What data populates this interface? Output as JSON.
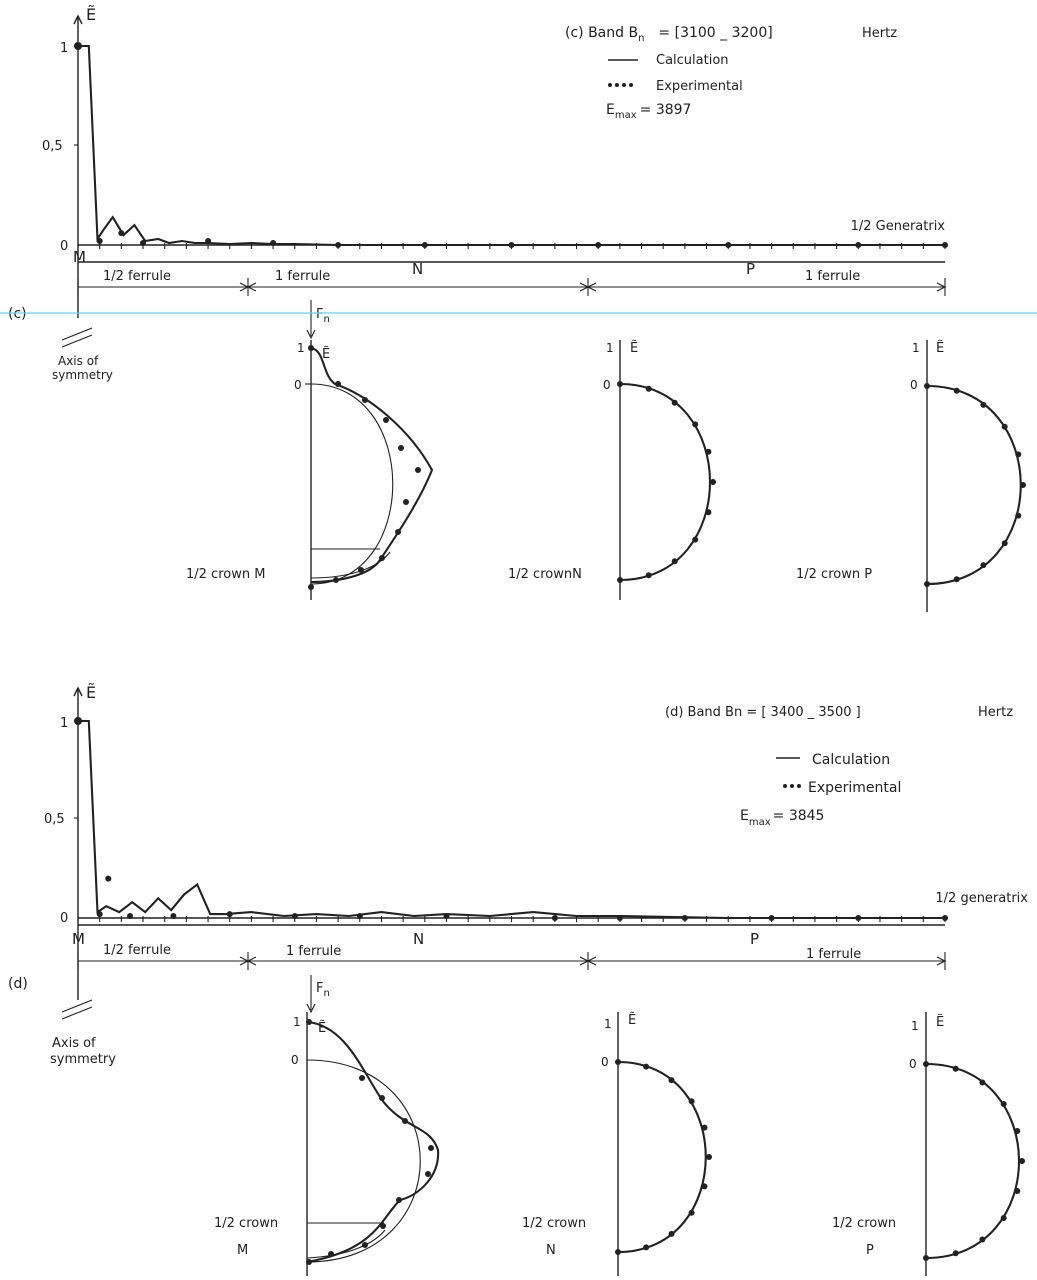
{
  "chart_data": [
    {
      "type": "line",
      "panel": "(c)",
      "title": "(c) Band B",
      "title_sub": "n",
      "band_value": "= [3100 _ 3200]",
      "band_unit": "Hertz",
      "y_label": "Ẽ",
      "ylim": [
        0,
        1
      ],
      "y_ticks": [
        "1",
        "0,5",
        "0"
      ],
      "legend": {
        "line": "Calculation",
        "dots": "Experimental"
      },
      "emax_label": "E",
      "emax_sub": "max",
      "emax_value": "= 3897",
      "x_label": "1/2 Generatrix",
      "x_points": [
        "M",
        "N",
        "P"
      ],
      "spans": [
        "1/2 ferrule",
        "1 ferrule",
        "1 ferrule"
      ],
      "symmetry_label": [
        "Axis of",
        "symmetry"
      ],
      "force_label": "F",
      "force_sub": "n",
      "series": [
        {
          "name": "Calculation",
          "x": [
            0,
            0.5,
            0.9,
            1.2,
            1.6,
            2.1,
            2.6,
            3.1,
            3.7,
            4.2,
            4.8,
            5.4,
            6,
            7,
            8,
            9,
            10,
            12,
            14,
            16,
            20,
            25,
            30,
            40
          ],
          "y": [
            1,
            1,
            0.03,
            0.08,
            0.14,
            0.05,
            0.1,
            0.02,
            0.03,
            0.01,
            0.02,
            0.01,
            0.01,
            0.005,
            0.01,
            0.005,
            0.005,
            0,
            0,
            0,
            0,
            0,
            0,
            0
          ]
        },
        {
          "name": "Experimental",
          "x": [
            0,
            1,
            2,
            3,
            6,
            9,
            12,
            16,
            20,
            24,
            30,
            36,
            40
          ],
          "y": [
            1,
            0.02,
            0.06,
            0.01,
            0.02,
            0.01,
            0,
            0,
            0,
            0,
            0,
            0,
            0
          ]
        }
      ],
      "crowns": [
        {
          "label": "1/2 crown  M",
          "y_top": "1",
          "y_zero": "0",
          "calc_y": [
            1,
            0.9,
            0.45,
            0.05,
            -0.35,
            -0.55,
            -0.6
          ],
          "exp": [
            [
              0.85,
              0.3
            ],
            [
              0.65,
              0.62
            ],
            [
              0.35,
              0.95
            ],
            [
              0.05,
              1.22
            ],
            [
              -0.2,
              1.0
            ],
            [
              -0.45,
              0.8
            ],
            [
              -0.72,
              0.55
            ],
            [
              -0.9,
              0.35
            ],
            [
              -1.0,
              0.25
            ],
            [
              -1.05,
              0.0
            ]
          ]
        },
        {
          "label": "1/2 crownN",
          "y_top": "1",
          "y_zero": "0",
          "exp_count": 11
        },
        {
          "label": "1/2 crown  P",
          "y_top": "1",
          "y_zero": "0",
          "exp_count": 11
        }
      ]
    },
    {
      "type": "line",
      "panel": "(d)",
      "title": "(d) Band  Bn = [ 3400 _ 3500 ]",
      "band_unit": "Hertz",
      "y_label": "Ẽ",
      "ylim": [
        0,
        1
      ],
      "y_ticks": [
        "1",
        "0,5",
        "0"
      ],
      "legend": {
        "line": "Calculation",
        "dots": "Experimental"
      },
      "emax_label": "E",
      "emax_sub": "max",
      "emax_value": "= 3845",
      "x_label": "1/2  generatrix",
      "x_points": [
        "M",
        "N",
        "P"
      ],
      "spans": [
        "1/2  ferrule",
        "1 ferrule",
        "1 ferrule"
      ],
      "symmetry_label": [
        "Axis of",
        "symmetry"
      ],
      "force_label": "F",
      "force_sub": "n",
      "series": [
        {
          "name": "Calculation",
          "x": [
            0,
            0.5,
            0.9,
            1.3,
            1.9,
            2.5,
            3.1,
            3.7,
            4.3,
            4.9,
            5.5,
            6.1,
            6.8,
            8,
            9.5,
            11,
            12.5,
            14,
            15.5,
            17,
            19,
            21,
            23,
            25,
            30,
            35,
            40
          ],
          "y": [
            1,
            1,
            0.03,
            0.06,
            0.03,
            0.08,
            0.03,
            0.1,
            0.04,
            0.12,
            0.17,
            0.02,
            0.02,
            0.03,
            0.01,
            0.02,
            0.01,
            0.03,
            0.01,
            0.02,
            0.01,
            0.03,
            0.01,
            0.01,
            0,
            0,
            0
          ]
        },
        {
          "name": "Experimental",
          "x": [
            0,
            1,
            1.4,
            2.4,
            4.4,
            7,
            10,
            13,
            17,
            22,
            25,
            28,
            32,
            36,
            40
          ],
          "y": [
            1,
            0.02,
            0.2,
            0.01,
            0.01,
            0.02,
            0.01,
            0.01,
            0.01,
            0,
            0,
            0,
            0,
            0,
            0
          ]
        }
      ],
      "crowns": [
        {
          "label": "1/2 crown",
          "label2": "M",
          "y_top": "1",
          "y_zero": "0",
          "exp_count": 10
        },
        {
          "label": "1/2 crown",
          "label2": "N",
          "y_top": "1",
          "y_zero": "0",
          "exp_count": 11
        },
        {
          "label": "1/2 crown",
          "label2": "P",
          "y_top": "1",
          "y_zero": "0",
          "exp_count": 11
        }
      ]
    }
  ]
}
